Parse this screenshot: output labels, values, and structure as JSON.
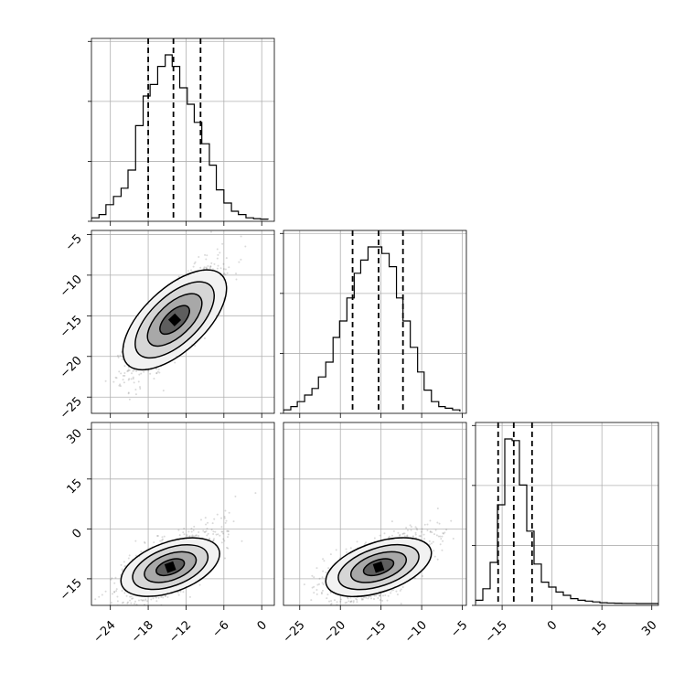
{
  "chart_data": {
    "type": "corner",
    "n_params": 3,
    "grid": true,
    "ranges": [
      [
        -27,
        2
      ],
      [
        -27,
        -4.5
      ],
      [
        -23,
        32
      ]
    ],
    "ticks": [
      [
        -24,
        -18,
        -12,
        -6,
        0
      ],
      [
        -25,
        -20,
        -15,
        -10,
        -5
      ],
      [
        -15,
        0,
        15,
        30
      ]
    ],
    "tick_labels": [
      [
        "−24",
        "−18",
        "−12",
        "−6",
        "0"
      ],
      [
        "−25",
        "−20",
        "−15",
        "−10",
        "−5"
      ],
      [
        "−15",
        "0",
        "15",
        "30"
      ]
    ],
    "quantiles": [
      [
        -18,
        -14,
        -9.7
      ],
      [
        -18.5,
        -15.3,
        -12.3
      ],
      [
        -16.2,
        -11.5,
        -6
      ]
    ],
    "histograms": [
      {
        "edges": [
          -27,
          -25.8,
          -24.7,
          -23.5,
          -22.3,
          -21.2,
          -20,
          -18.8,
          -17.7,
          -16.5,
          -15.3,
          -14.2,
          -13,
          -11.8,
          -10.7,
          -9.5,
          -8.3,
          -7.2,
          -6,
          -4.8,
          -3.7,
          -2.5,
          -1.3,
          -0.2,
          1
        ],
        "counts": [
          1,
          3,
          9,
          14,
          19,
          30,
          57,
          75,
          82,
          93,
          100,
          93,
          80,
          70,
          59,
          46,
          33,
          18,
          10,
          5,
          3,
          1,
          0.5,
          0.2
        ]
      },
      {
        "edges": [
          -27,
          -26.1,
          -25.3,
          -24.4,
          -23.5,
          -22.7,
          -21.8,
          -20.9,
          -20.1,
          -19.2,
          -18.3,
          -17.5,
          -16.6,
          -15.7,
          -14.9,
          -14,
          -13.1,
          -12.3,
          -11.4,
          -10.5,
          -9.7,
          -8.8,
          -7.9,
          -7.1,
          -6.2,
          -5.3
        ],
        "counts": [
          1,
          3,
          6,
          10,
          14,
          21,
          30,
          45,
          55,
          69,
          84,
          92,
          100,
          100,
          96,
          88,
          69,
          55,
          39,
          24,
          13,
          6,
          3,
          2,
          1
        ]
      },
      {
        "edges": [
          -23,
          -20.8,
          -18.6,
          -16.4,
          -14.2,
          -12,
          -9.8,
          -7.6,
          -5.4,
          -3.2,
          -1,
          1.2,
          3.4,
          5.6,
          7.8,
          10,
          12.2,
          14.4,
          16.6,
          18.8,
          21,
          23.2,
          25.4,
          27.6,
          29.8,
          32
        ],
        "counts": [
          2,
          9,
          25,
          60,
          100,
          99,
          72,
          44,
          24,
          13,
          10,
          7,
          5,
          3,
          2,
          1.5,
          1,
          0.5,
          0.3,
          0.2,
          0.1,
          0.1,
          0,
          0,
          0
        ]
      }
    ],
    "pairs": [
      {
        "x_param": 0,
        "y_param": 1,
        "center": [
          -13.8,
          -15.5
        ],
        "sd": [
          3.5,
          3.2
        ],
        "rho": 0.8
      },
      {
        "x_param": 0,
        "y_param": 2,
        "center": [
          -14.5,
          -11.5
        ],
        "sd": [
          3.6,
          4.5
        ],
        "rho": 0.55
      },
      {
        "x_param": 1,
        "y_param": 2,
        "center": [
          -15.3,
          -11.5
        ],
        "sd": [
          3,
          4.5
        ],
        "rho": 0.55
      }
    ]
  }
}
